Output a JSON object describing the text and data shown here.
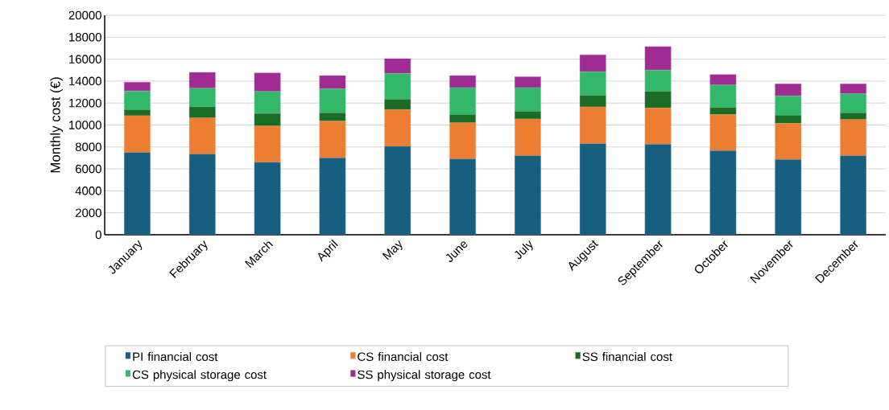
{
  "chart_data": {
    "type": "bar",
    "stacked": true,
    "ylabel": "Monthly cost (€)",
    "categories": [
      "January",
      "February",
      "March",
      "April",
      "May",
      "June",
      "July",
      "August",
      "September",
      "October",
      "November",
      "December"
    ],
    "series": [
      {
        "name": "PI financial cost",
        "color": "#175f81",
        "values": [
          7500,
          7350,
          6600,
          7000,
          8050,
          6900,
          7200,
          8300,
          8250,
          7650,
          6850,
          7200
        ]
      },
      {
        "name": "CS financial cost",
        "color": "#ed7d31",
        "values": [
          3350,
          3300,
          3300,
          3350,
          3350,
          3300,
          3350,
          3350,
          3300,
          3300,
          3300,
          3300
        ]
      },
      {
        "name": "SS financial cost",
        "color": "#1a6b25",
        "values": [
          550,
          1000,
          1150,
          750,
          950,
          750,
          700,
          1050,
          1500,
          650,
          750,
          600
        ]
      },
      {
        "name": "CS physical storage cost",
        "color": "#33b86a",
        "values": [
          1700,
          1700,
          2000,
          2200,
          2350,
          2450,
          2150,
          2150,
          1950,
          2050,
          1750,
          1750
        ]
      },
      {
        "name": "SS physical storage cost",
        "color": "#a02b93",
        "values": [
          800,
          1450,
          1700,
          1200,
          1350,
          1100,
          1000,
          1550,
          2150,
          950,
          1100,
          900
        ]
      }
    ],
    "ylim": [
      0,
      20000
    ],
    "yticks": [
      0,
      2000,
      4000,
      6000,
      8000,
      10000,
      12000,
      14000,
      16000,
      18000,
      20000
    ],
    "grid": "y",
    "legend": "bottom"
  }
}
